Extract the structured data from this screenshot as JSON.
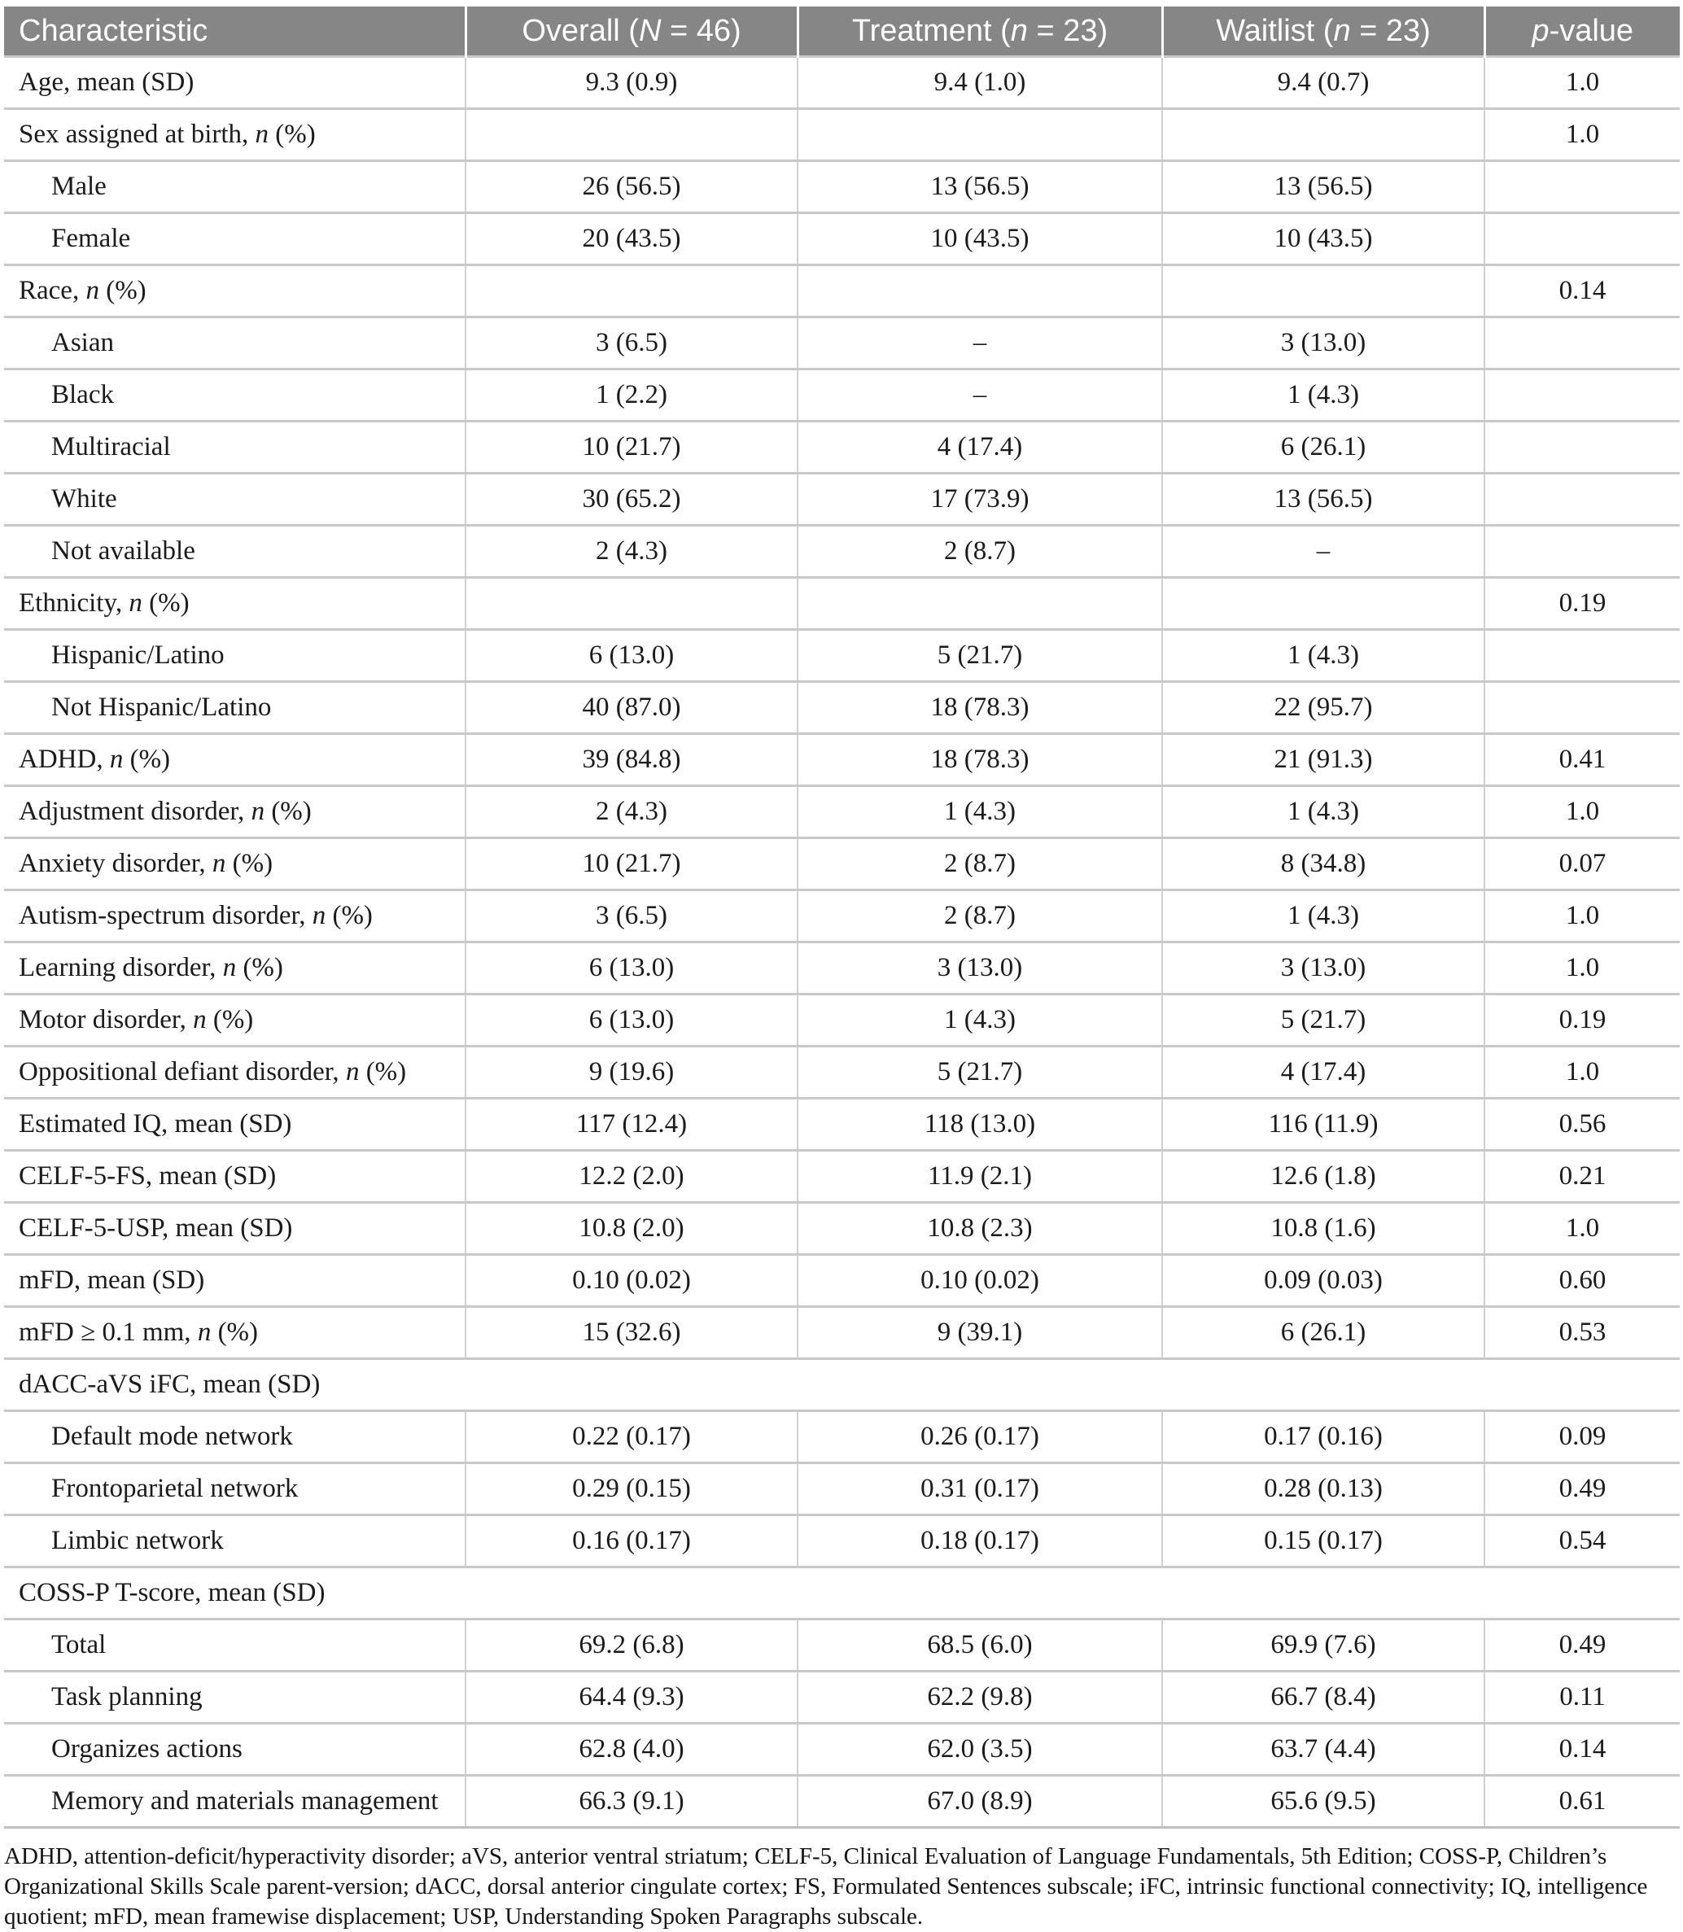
{
  "theme": {
    "header_bg": "#868686",
    "header_text": "#ffffff",
    "grid_line": "#c9c9c9",
    "grid_line_light": "#d2d2d2",
    "grid_line_strong": "#bfbfbf"
  },
  "table": {
    "header": [
      {
        "pre": "Characteristic",
        "it": "",
        "suf": ""
      },
      {
        "pre": "Overall (",
        "it": "N",
        "suf": " = 46)"
      },
      {
        "pre": "Treatment (",
        "it": "n",
        "suf": " = 23)"
      },
      {
        "pre": "Waitlist (",
        "it": "n",
        "suf": " = 23)"
      },
      {
        "pre": "",
        "it": "p",
        "suf": "-value"
      }
    ],
    "rows": [
      {
        "label": "Age, mean (SD)",
        "indent": false,
        "span": false,
        "overall": "9.3 (0.9)",
        "treatment": "9.4 (1.0)",
        "waitlist": "9.4 (0.7)",
        "p": "1.0"
      },
      {
        "label": "Sex assigned at birth, ",
        "label_italic": "n",
        "label_suffix": " (%)",
        "indent": false,
        "span": false,
        "overall": "",
        "treatment": "",
        "waitlist": "",
        "p": "1.0"
      },
      {
        "label": "Male",
        "indent": true,
        "span": false,
        "overall": "26 (56.5)",
        "treatment": "13 (56.5)",
        "waitlist": "13 (56.5)",
        "p": ""
      },
      {
        "label": "Female",
        "indent": true,
        "span": false,
        "overall": "20 (43.5)",
        "treatment": "10 (43.5)",
        "waitlist": "10 (43.5)",
        "p": ""
      },
      {
        "label": "Race, ",
        "label_italic": "n",
        "label_suffix": " (%)",
        "indent": false,
        "span": false,
        "overall": "",
        "treatment": "",
        "waitlist": "",
        "p": "0.14"
      },
      {
        "label": "Asian",
        "indent": true,
        "span": false,
        "overall": "3 (6.5)",
        "treatment": "–",
        "waitlist": "3 (13.0)",
        "p": ""
      },
      {
        "label": "Black",
        "indent": true,
        "span": false,
        "overall": "1 (2.2)",
        "treatment": "–",
        "waitlist": "1 (4.3)",
        "p": ""
      },
      {
        "label": "Multiracial",
        "indent": true,
        "span": false,
        "overall": "10 (21.7)",
        "treatment": "4 (17.4)",
        "waitlist": "6 (26.1)",
        "p": ""
      },
      {
        "label": "White",
        "indent": true,
        "span": false,
        "overall": "30 (65.2)",
        "treatment": "17 (73.9)",
        "waitlist": "13 (56.5)",
        "p": ""
      },
      {
        "label": "Not available",
        "indent": true,
        "span": false,
        "overall": "2 (4.3)",
        "treatment": "2 (8.7)",
        "waitlist": "–",
        "p": ""
      },
      {
        "label": "Ethnicity, ",
        "label_italic": "n",
        "label_suffix": " (%)",
        "indent": false,
        "span": false,
        "overall": "",
        "treatment": "",
        "waitlist": "",
        "p": "0.19"
      },
      {
        "label": "Hispanic/Latino",
        "indent": true,
        "span": false,
        "overall": "6 (13.0)",
        "treatment": "5 (21.7)",
        "waitlist": "1 (4.3)",
        "p": ""
      },
      {
        "label": "Not Hispanic/Latino",
        "indent": true,
        "span": false,
        "overall": "40 (87.0)",
        "treatment": "18 (78.3)",
        "waitlist": "22 (95.7)",
        "p": ""
      },
      {
        "label": "ADHD, ",
        "label_italic": "n",
        "label_suffix": " (%)",
        "indent": false,
        "span": false,
        "overall": "39 (84.8)",
        "treatment": "18 (78.3)",
        "waitlist": "21 (91.3)",
        "p": "0.41"
      },
      {
        "label": "Adjustment disorder, ",
        "label_italic": "n",
        "label_suffix": " (%)",
        "indent": false,
        "span": false,
        "overall": "2 (4.3)",
        "treatment": "1 (4.3)",
        "waitlist": "1 (4.3)",
        "p": "1.0"
      },
      {
        "label": "Anxiety disorder, ",
        "label_italic": "n",
        "label_suffix": " (%)",
        "indent": false,
        "span": false,
        "overall": "10 (21.7)",
        "treatment": "2 (8.7)",
        "waitlist": "8 (34.8)",
        "p": "0.07"
      },
      {
        "label": "Autism-spectrum disorder, ",
        "label_italic": "n",
        "label_suffix": " (%)",
        "indent": false,
        "span": false,
        "overall": "3 (6.5)",
        "treatment": "2 (8.7)",
        "waitlist": "1 (4.3)",
        "p": "1.0"
      },
      {
        "label": "Learning disorder, ",
        "label_italic": "n",
        "label_suffix": " (%)",
        "indent": false,
        "span": false,
        "overall": "6 (13.0)",
        "treatment": "3 (13.0)",
        "waitlist": "3 (13.0)",
        "p": "1.0"
      },
      {
        "label": "Motor disorder, ",
        "label_italic": "n",
        "label_suffix": " (%)",
        "indent": false,
        "span": false,
        "overall": "6 (13.0)",
        "treatment": "1 (4.3)",
        "waitlist": "5 (21.7)",
        "p": "0.19"
      },
      {
        "label": "Oppositional defiant disorder, ",
        "label_italic": "n",
        "label_suffix": " (%)",
        "indent": false,
        "span": false,
        "overall": "9 (19.6)",
        "treatment": "5 (21.7)",
        "waitlist": "4 (17.4)",
        "p": "1.0"
      },
      {
        "label": "Estimated IQ, mean (SD)",
        "indent": false,
        "span": false,
        "overall": "117 (12.4)",
        "treatment": "118 (13.0)",
        "waitlist": "116 (11.9)",
        "p": "0.56"
      },
      {
        "label": "CELF-5-FS, mean (SD)",
        "indent": false,
        "span": false,
        "overall": "12.2 (2.0)",
        "treatment": "11.9 (2.1)",
        "waitlist": "12.6 (1.8)",
        "p": "0.21"
      },
      {
        "label": "CELF-5-USP, mean (SD)",
        "indent": false,
        "span": false,
        "overall": "10.8 (2.0)",
        "treatment": "10.8 (2.3)",
        "waitlist": "10.8 (1.6)",
        "p": "1.0"
      },
      {
        "label": "mFD, mean (SD)",
        "indent": false,
        "span": false,
        "overall": "0.10 (0.02)",
        "treatment": "0.10 (0.02)",
        "waitlist": "0.09 (0.03)",
        "p": "0.60"
      },
      {
        "label": "mFD ≥ 0.1 mm, ",
        "label_italic": "n",
        "label_suffix": " (%)",
        "indent": false,
        "span": false,
        "overall": "15 (32.6)",
        "treatment": "9 (39.1)",
        "waitlist": "6 (26.1)",
        "p": "0.53"
      },
      {
        "label": "dACC-aVS iFC, mean (SD)",
        "indent": false,
        "span": true
      },
      {
        "label": "Default mode network",
        "indent": true,
        "span": false,
        "overall": "0.22 (0.17)",
        "treatment": "0.26 (0.17)",
        "waitlist": "0.17 (0.16)",
        "p": "0.09"
      },
      {
        "label": "Frontoparietal network",
        "indent": true,
        "span": false,
        "overall": "0.29 (0.15)",
        "treatment": "0.31 (0.17)",
        "waitlist": "0.28 (0.13)",
        "p": "0.49"
      },
      {
        "label": "Limbic network",
        "indent": true,
        "span": false,
        "overall": "0.16 (0.17)",
        "treatment": "0.18 (0.17)",
        "waitlist": "0.15 (0.17)",
        "p": "0.54"
      },
      {
        "label": "COSS-P T-score, mean (SD)",
        "indent": false,
        "span": true
      },
      {
        "label": "Total",
        "indent": true,
        "span": false,
        "overall": "69.2 (6.8)",
        "treatment": "68.5 (6.0)",
        "waitlist": "69.9 (7.6)",
        "p": "0.49"
      },
      {
        "label": "Task planning",
        "indent": true,
        "span": false,
        "overall": "64.4 (9.3)",
        "treatment": "62.2 (9.8)",
        "waitlist": "66.7 (8.4)",
        "p": "0.11"
      },
      {
        "label": "Organizes actions",
        "indent": true,
        "span": false,
        "overall": "62.8 (4.0)",
        "treatment": "62.0 (3.5)",
        "waitlist": "63.7 (4.4)",
        "p": "0.14"
      },
      {
        "label": "Memory and materials management",
        "indent": true,
        "span": false,
        "overall": "66.3 (9.1)",
        "treatment": "67.0 (8.9)",
        "waitlist": "65.6 (9.5)",
        "p": "0.61"
      }
    ]
  },
  "footnote": "ADHD, attention-deficit/hyperactivity disorder; aVS, anterior ventral striatum; CELF-5, Clinical Evaluation of Language Fundamentals, 5th Edition; COSS-P, Children’s Organizational Skills Scale parent-version; dACC, dorsal anterior cingulate cortex; FS, Formulated Sentences subscale; iFC, intrinsic functional connectivity; IQ, intelligence quotient; mFD, mean framewise displacement; USP, Understanding Spoken Paragraphs subscale."
}
